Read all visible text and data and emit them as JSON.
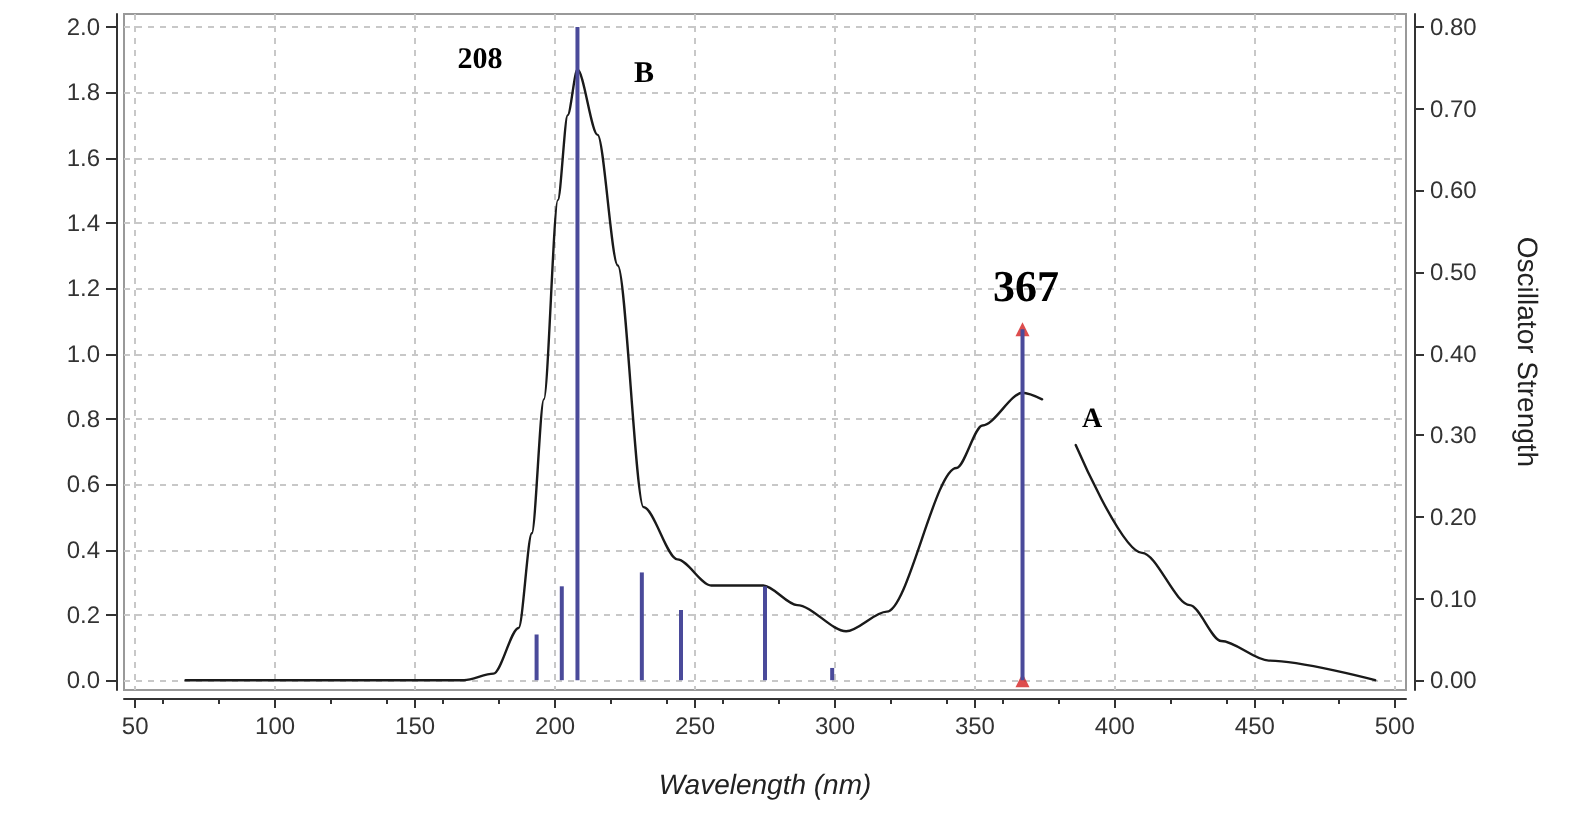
{
  "chart_data": {
    "type": "line",
    "xlabel": "Wavelength (nm)",
    "y2label": "Oscillator Strength",
    "xlim": [
      46,
      504
    ],
    "xticks": [
      50,
      100,
      150,
      200,
      250,
      300,
      350,
      400,
      450,
      500
    ],
    "ylim": [
      -0.03,
      2.04
    ],
    "yticks": [
      {
        "value": 0,
        "label": "0.0"
      },
      {
        "value": 0.2,
        "label": "0.2"
      },
      {
        "value": 0.4,
        "label": "0.4"
      },
      {
        "value": 0.6,
        "label": "0.6"
      },
      {
        "value": 0.8,
        "label": "0.8"
      },
      {
        "value": 1,
        "label": "1.0"
      },
      {
        "value": 1.2,
        "label": "1.2"
      },
      {
        "value": 1.4,
        "label": "1.4"
      },
      {
        "value": 1.6,
        "label": "1.6"
      },
      {
        "value": 1.8,
        "label": "1.8"
      },
      {
        "value": 2,
        "label": "2.0"
      }
    ],
    "y2lim": [
      -0.012,
      0.816
    ],
    "y2ticks": [
      {
        "value": 0,
        "label": "0.00"
      },
      {
        "value": 0.1,
        "label": "0.10"
      },
      {
        "value": 0.2,
        "label": "0.20"
      },
      {
        "value": 0.3,
        "label": "0.30"
      },
      {
        "value": 0.4,
        "label": "0.40"
      },
      {
        "value": 0.5,
        "label": "0.50"
      },
      {
        "value": 0.6,
        "label": "0.60"
      },
      {
        "value": 0.7,
        "label": "0.70"
      },
      {
        "value": 0.8,
        "label": "0.80"
      }
    ],
    "grid": true,
    "series": [
      {
        "color": "#1a1a1a",
        "marker": "none",
        "line_style": "solid",
        "x": [
          68,
          167.5,
          178,
          187,
          191.7,
          196,
          201,
          204.5,
          208,
          215.2,
          222.4,
          231.6,
          243.7,
          255.8,
          274.4,
          286.5,
          304,
          318.5,
          343.4,
          352.7,
          367,
          374,
          380,
          386,
          409.7,
          426.8,
          438,
          455,
          493
        ],
        "values": [
          0,
          0,
          0.02,
          0.16,
          0.45,
          0.86,
          1.47,
          1.73,
          1.87,
          1.67,
          1.27,
          0.53,
          0.37,
          0.29,
          0.29,
          0.23,
          0.15,
          0.21,
          0.65,
          0.78,
          0.88,
          0.86,
          null,
          0.72,
          0.39,
          0.23,
          0.12,
          0.06,
          0
        ]
      },
      {
        "type": "bar",
        "axis": "y2",
        "color": "#4a4a9a",
        "x": [
          193.4,
          202.4,
          208,
          231,
          245,
          275,
          299,
          367
        ],
        "values": [
          0.056,
          0.115,
          0.8,
          0.132,
          0.086,
          0.115,
          0.015,
          0.43
        ]
      },
      {
        "type": "scatter",
        "axis": "y2",
        "color": "#d42020",
        "marker": "triangle",
        "x": [
          367,
          367
        ],
        "values": [
          0.43,
          0
        ]
      }
    ],
    "annotations": [
      "208",
      "B",
      "367",
      "A"
    ]
  }
}
